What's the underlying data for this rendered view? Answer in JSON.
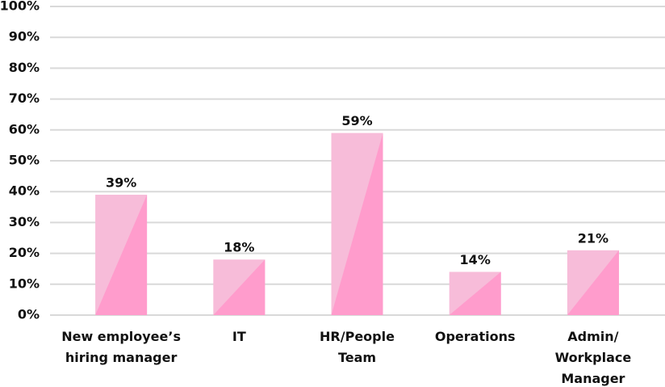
{
  "chart_data": {
    "type": "bar",
    "categories": [
      [
        "New employee’s",
        "hiring manager"
      ],
      [
        "IT"
      ],
      [
        "HR/People",
        "Team"
      ],
      [
        "Operations"
      ],
      [
        "Admin/",
        "Workplace",
        "Manager"
      ]
    ],
    "values": [
      39,
      18,
      59,
      14,
      21
    ],
    "value_labels": [
      "39%",
      "18%",
      "59%",
      "14%",
      "21%"
    ],
    "color": "#f7bcd9",
    "shade_color": "#ff9ccc",
    "ylim": [
      0,
      100
    ],
    "yticks": [
      {
        "value": 0,
        "label": "0%"
      },
      {
        "value": 10,
        "label": "10%"
      },
      {
        "value": 20,
        "label": "20%"
      },
      {
        "value": 30,
        "label": "30%"
      },
      {
        "value": 40,
        "label": "40%"
      },
      {
        "value": 50,
        "label": "50%"
      },
      {
        "value": 60,
        "label": "60%"
      },
      {
        "value": 70,
        "label": "70%"
      },
      {
        "value": 80,
        "label": "80%"
      },
      {
        "value": 90,
        "label": "90%"
      },
      {
        "value": 100,
        "label": "100%"
      }
    ],
    "grid": true
  }
}
